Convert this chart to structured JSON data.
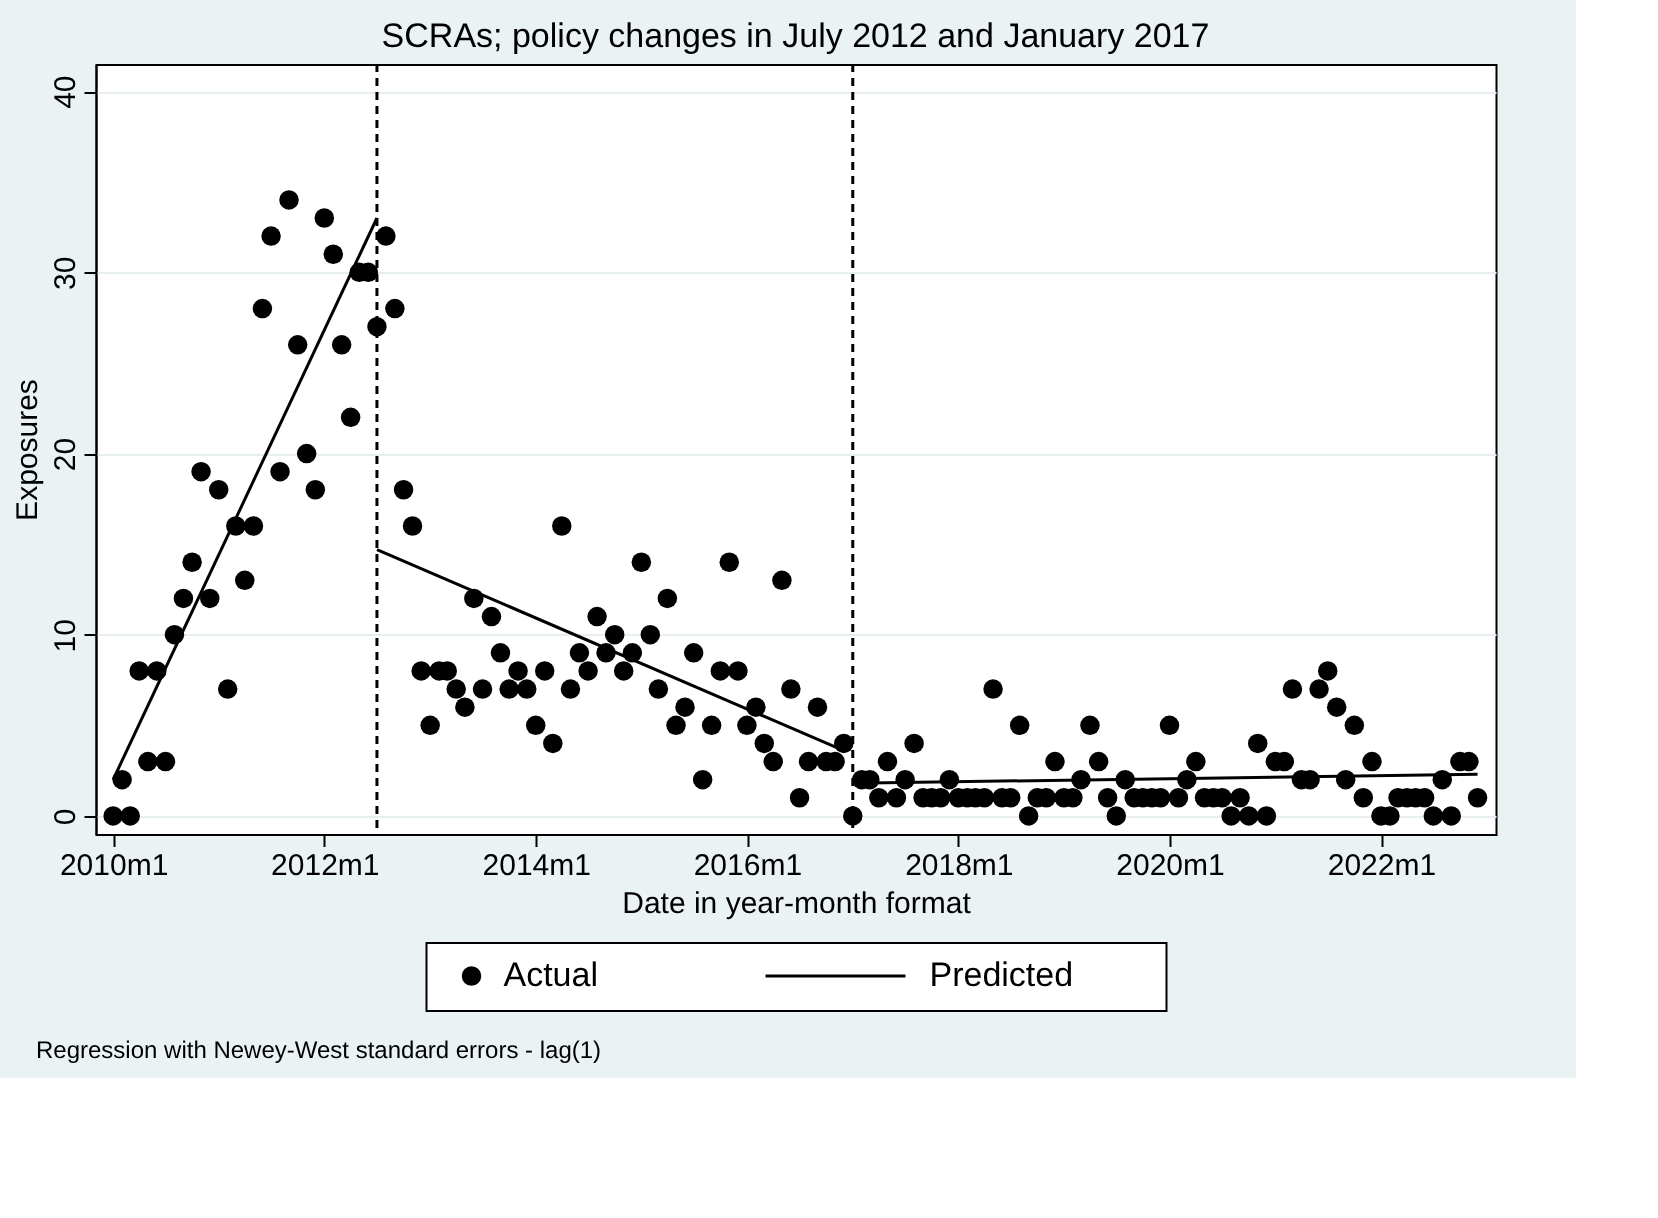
{
  "chart_data": {
    "type": "scatter",
    "title": "SCRAs; policy changes in July 2012 and January 2017",
    "xlabel": "Date in year-month format",
    "ylabel": "Exposures",
    "x": [
      "2010-01",
      "2010-02",
      "2010-03",
      "2010-04",
      "2010-05",
      "2010-06",
      "2010-07",
      "2010-08",
      "2010-09",
      "2010-10",
      "2010-11",
      "2010-12",
      "2011-01",
      "2011-02",
      "2011-03",
      "2011-04",
      "2011-05",
      "2011-06",
      "2011-07",
      "2011-08",
      "2011-09",
      "2011-10",
      "2011-11",
      "2011-12",
      "2012-01",
      "2012-02",
      "2012-03",
      "2012-04",
      "2012-05",
      "2012-06",
      "2012-07",
      "2012-08",
      "2012-09",
      "2012-10",
      "2012-11",
      "2012-12",
      "2013-01",
      "2013-02",
      "2013-03",
      "2013-04",
      "2013-05",
      "2013-06",
      "2013-07",
      "2013-08",
      "2013-09",
      "2013-10",
      "2013-11",
      "2013-12",
      "2014-01",
      "2014-02",
      "2014-03",
      "2014-04",
      "2014-05",
      "2014-06",
      "2014-07",
      "2014-08",
      "2014-09",
      "2014-10",
      "2014-11",
      "2014-12",
      "2015-01",
      "2015-02",
      "2015-03",
      "2015-04",
      "2015-05",
      "2015-06",
      "2015-07",
      "2015-08",
      "2015-09",
      "2015-10",
      "2015-11",
      "2015-12",
      "2016-01",
      "2016-02",
      "2016-03",
      "2016-04",
      "2016-05",
      "2016-06",
      "2016-07",
      "2016-08",
      "2016-09",
      "2016-10",
      "2016-11",
      "2016-12",
      "2017-01",
      "2017-02",
      "2017-03",
      "2017-04",
      "2017-05",
      "2017-06",
      "2017-07",
      "2017-08",
      "2017-09",
      "2017-10",
      "2017-11",
      "2017-12",
      "2018-01",
      "2018-02",
      "2018-03",
      "2018-04",
      "2018-05",
      "2018-06",
      "2018-07",
      "2018-08",
      "2018-09",
      "2018-10",
      "2018-11",
      "2018-12",
      "2019-01",
      "2019-02",
      "2019-03",
      "2019-04",
      "2019-05",
      "2019-06",
      "2019-07",
      "2019-08",
      "2019-09",
      "2019-10",
      "2019-11",
      "2019-12",
      "2020-01",
      "2020-02",
      "2020-03",
      "2020-04",
      "2020-05",
      "2020-06",
      "2020-07",
      "2020-08",
      "2020-09",
      "2020-10",
      "2020-11",
      "2020-12",
      "2021-01",
      "2021-02",
      "2021-03",
      "2021-04",
      "2021-05",
      "2021-06",
      "2021-07",
      "2021-08",
      "2021-09",
      "2021-10",
      "2021-11",
      "2021-12",
      "2022-01",
      "2022-02",
      "2022-03",
      "2022-04",
      "2022-05",
      "2022-06",
      "2022-07",
      "2022-08",
      "2022-09",
      "2022-10",
      "2022-11",
      "2022-12"
    ],
    "series": [
      {
        "name": "Actual",
        "color": "#000000",
        "values": [
          0,
          2,
          0,
          8,
          3,
          8,
          3,
          10,
          12,
          14,
          19,
          12,
          18,
          7,
          16,
          13,
          16,
          28,
          32,
          19,
          34,
          26,
          20,
          18,
          33,
          31,
          26,
          22,
          30,
          30,
          27,
          32,
          28,
          18,
          16,
          8,
          5,
          8,
          8,
          7,
          6,
          12,
          7,
          11,
          9,
          7,
          8,
          7,
          5,
          8,
          4,
          16,
          7,
          9,
          8,
          11,
          9,
          10,
          8,
          9,
          14,
          10,
          7,
          12,
          5,
          6,
          9,
          2,
          5,
          8,
          14,
          8,
          5,
          6,
          4,
          3,
          13,
          7,
          1,
          3,
          6,
          3,
          3,
          4,
          0,
          2,
          2,
          1,
          3,
          1,
          2,
          4,
          1,
          1,
          1,
          2,
          1,
          1,
          1,
          1,
          7,
          1,
          1,
          5,
          0,
          1,
          1,
          3,
          1,
          1,
          2,
          5,
          3,
          1,
          0,
          2,
          1,
          1,
          1,
          1,
          5,
          1,
          2,
          3,
          1,
          1,
          1,
          0,
          1,
          0,
          4,
          0,
          3,
          3,
          7,
          2,
          2,
          7,
          8,
          6,
          2,
          5,
          1,
          3,
          0,
          0,
          1,
          1,
          1,
          1,
          0,
          2,
          0,
          3,
          3,
          1
        ]
      },
      {
        "name": "Predicted",
        "type": "line",
        "color": "#000000",
        "marker": "none",
        "line_style": "solid",
        "x": [
          "2010-01",
          "2012-07"
        ],
        "values": [
          2.0,
          33.0
        ]
      },
      {
        "type": "line",
        "color": "#000000",
        "marker": "none",
        "line_style": "solid",
        "x": [
          "2012-07",
          "2016-12"
        ],
        "values": [
          14.7,
          3.6
        ]
      },
      {
        "type": "line",
        "color": "#000000",
        "marker": "none",
        "line_style": "solid",
        "x": [
          "2017-01",
          "2022-12"
        ],
        "values": [
          1.8,
          2.3
        ]
      }
    ],
    "xlim": [
      "2009-11",
      "2023-02"
    ],
    "xticks": [
      {
        "value": "2010-01",
        "label": "2010m1"
      },
      {
        "value": "2012-01",
        "label": "2012m1"
      },
      {
        "value": "2014-01",
        "label": "2014m1"
      },
      {
        "value": "2016-01",
        "label": "2016m1"
      },
      {
        "value": "2018-01",
        "label": "2018m1"
      },
      {
        "value": "2020-01",
        "label": "2020m1"
      },
      {
        "value": "2022-01",
        "label": "2022m1"
      }
    ],
    "ylim": [
      -1,
      41.5
    ],
    "yticks": [
      0,
      10,
      20,
      30,
      40
    ],
    "ref_lines": [
      {
        "axis": "x",
        "value": "2012-07",
        "color": "#000000",
        "line_style": "dashed"
      },
      {
        "axis": "x",
        "value": "2017-01",
        "color": "#000000",
        "line_style": "dashed"
      }
    ],
    "annotations": [
      "Regression with Newey-West standard errors - lag(1)"
    ],
    "grid": "y",
    "legend": "bottom",
    "marker": "circle"
  }
}
